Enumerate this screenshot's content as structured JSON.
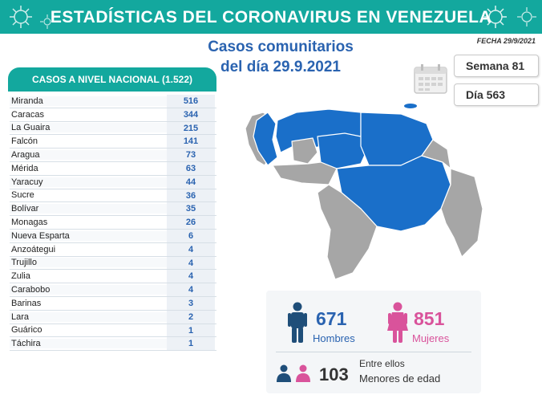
{
  "banner": {
    "title": "ESTADÍSTICAS DEL CORONAVIRUS EN VENEZUELA"
  },
  "headline": {
    "line1": "Casos comunitarios",
    "line2": "del día 29.9.2021"
  },
  "fecha": "FECHA 29/9/2021",
  "week": {
    "semana": "Semana 81",
    "dia": "Día 563"
  },
  "table": {
    "header": "CASOS A NIVEL NACIONAL (1.522)",
    "rows": [
      {
        "state": "Miranda",
        "cases": "516"
      },
      {
        "state": "Caracas",
        "cases": "344"
      },
      {
        "state": "La Guaira",
        "cases": "215"
      },
      {
        "state": "Falcón",
        "cases": "141"
      },
      {
        "state": "Aragua",
        "cases": "73"
      },
      {
        "state": "Mérida",
        "cases": "63"
      },
      {
        "state": "Yaracuy",
        "cases": "44"
      },
      {
        "state": "Sucre",
        "cases": "36"
      },
      {
        "state": "Bolívar",
        "cases": "35"
      },
      {
        "state": "Monagas",
        "cases": "26"
      },
      {
        "state": "Nueva Esparta",
        "cases": "6"
      },
      {
        "state": "Anzoátegui",
        "cases": "4"
      },
      {
        "state": "Trujillo",
        "cases": "4"
      },
      {
        "state": "Zulia",
        "cases": "4"
      },
      {
        "state": "Carabobo",
        "cases": "4"
      },
      {
        "state": "Barinas",
        "cases": "3"
      },
      {
        "state": "Lara",
        "cases": "2"
      },
      {
        "state": "Guárico",
        "cases": "1"
      },
      {
        "state": "Táchira",
        "cases": "1"
      }
    ]
  },
  "stats": {
    "hombres_num": "671",
    "hombres_label": "Hombres",
    "mujeres_num": "851",
    "mujeres_label": "Mujeres",
    "menores_intro": "Entre ellos",
    "menores_num": "103",
    "menores_label": "Menores de edad"
  },
  "colors": {
    "teal": "#13a89e",
    "blue": "#2a63b0",
    "map_blue": "#1a6fc9",
    "map_gray": "#a6a6a6",
    "male": "#1f4e79",
    "female": "#d9539b"
  }
}
